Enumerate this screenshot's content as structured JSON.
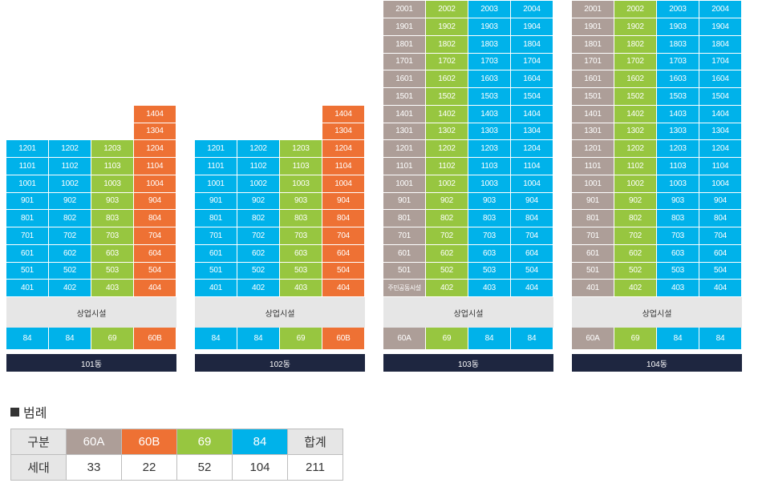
{
  "colors": {
    "60A": "#ad9e98",
    "60B": "#ee7134",
    "69": "#97c640",
    "84": "#00b2ea",
    "commercial": "#e6e6e6",
    "namebar": "#1e2640"
  },
  "buildings": [
    {
      "name": "101동",
      "commercial": "상업시설",
      "types": [
        "84",
        "84",
        "69",
        "60B"
      ],
      "floors": [
        [
          "",
          "",
          "",
          "1404"
        ],
        [
          "",
          "",
          "",
          "1304"
        ],
        [
          "1201",
          "1202",
          "1203",
          "1204"
        ],
        [
          "1101",
          "1102",
          "1103",
          "1104"
        ],
        [
          "1001",
          "1002",
          "1003",
          "1004"
        ],
        [
          "901",
          "902",
          "903",
          "904"
        ],
        [
          "801",
          "802",
          "803",
          "804"
        ],
        [
          "701",
          "702",
          "703",
          "704"
        ],
        [
          "601",
          "602",
          "603",
          "604"
        ],
        [
          "501",
          "502",
          "503",
          "504"
        ],
        [
          "401",
          "402",
          "403",
          "404"
        ]
      ]
    },
    {
      "name": "102동",
      "commercial": "상업시설",
      "types": [
        "84",
        "84",
        "69",
        "60B"
      ],
      "floors": [
        [
          "",
          "",
          "",
          "1404"
        ],
        [
          "",
          "",
          "",
          "1304"
        ],
        [
          "1201",
          "1202",
          "1203",
          "1204"
        ],
        [
          "1101",
          "1102",
          "1103",
          "1104"
        ],
        [
          "1001",
          "1002",
          "1003",
          "1004"
        ],
        [
          "901",
          "902",
          "903",
          "904"
        ],
        [
          "801",
          "802",
          "803",
          "804"
        ],
        [
          "701",
          "702",
          "703",
          "704"
        ],
        [
          "601",
          "602",
          "603",
          "604"
        ],
        [
          "501",
          "502",
          "503",
          "504"
        ],
        [
          "401",
          "402",
          "403",
          "404"
        ]
      ]
    },
    {
      "name": "103동",
      "commercial": "상업시설",
      "types": [
        "60A",
        "69",
        "84",
        "84"
      ],
      "floors": [
        [
          "2001",
          "2002",
          "2003",
          "2004"
        ],
        [
          "1901",
          "1902",
          "1903",
          "1904"
        ],
        [
          "1801",
          "1802",
          "1803",
          "1804"
        ],
        [
          "1701",
          "1702",
          "1703",
          "1704"
        ],
        [
          "1601",
          "1602",
          "1603",
          "1604"
        ],
        [
          "1501",
          "1502",
          "1503",
          "1504"
        ],
        [
          "1401",
          "1402",
          "1403",
          "1404"
        ],
        [
          "1301",
          "1302",
          "1303",
          "1304"
        ],
        [
          "1201",
          "1202",
          "1203",
          "1204"
        ],
        [
          "1101",
          "1102",
          "1103",
          "1104"
        ],
        [
          "1001",
          "1002",
          "1003",
          "1004"
        ],
        [
          "901",
          "902",
          "903",
          "904"
        ],
        [
          "801",
          "802",
          "803",
          "804"
        ],
        [
          "701",
          "702",
          "703",
          "704"
        ],
        [
          "601",
          "602",
          "603",
          "604"
        ],
        [
          "501",
          "502",
          "503",
          "504"
        ],
        [
          "주민공동시설",
          "402",
          "403",
          "404"
        ]
      ]
    },
    {
      "name": "104동",
      "commercial": "상업시설",
      "types": [
        "60A",
        "69",
        "84",
        "84"
      ],
      "floors": [
        [
          "2001",
          "2002",
          "2003",
          "2004"
        ],
        [
          "1901",
          "1902",
          "1903",
          "1904"
        ],
        [
          "1801",
          "1802",
          "1803",
          "1804"
        ],
        [
          "1701",
          "1702",
          "1703",
          "1704"
        ],
        [
          "1601",
          "1602",
          "1603",
          "1604"
        ],
        [
          "1501",
          "1502",
          "1503",
          "1504"
        ],
        [
          "1401",
          "1402",
          "1403",
          "1404"
        ],
        [
          "1301",
          "1302",
          "1303",
          "1304"
        ],
        [
          "1201",
          "1202",
          "1203",
          "1204"
        ],
        [
          "1101",
          "1102",
          "1103",
          "1104"
        ],
        [
          "1001",
          "1002",
          "1003",
          "1004"
        ],
        [
          "901",
          "902",
          "903",
          "904"
        ],
        [
          "801",
          "802",
          "803",
          "804"
        ],
        [
          "701",
          "702",
          "703",
          "704"
        ],
        [
          "601",
          "602",
          "603",
          "604"
        ],
        [
          "501",
          "502",
          "503",
          "504"
        ],
        [
          "401",
          "402",
          "403",
          "404"
        ]
      ]
    }
  ],
  "legend": {
    "title": "범례",
    "header_label": "구분",
    "count_label": "세대",
    "total_label": "합계",
    "types": [
      {
        "name": "60A",
        "count": "33"
      },
      {
        "name": "60B",
        "count": "22"
      },
      {
        "name": "69",
        "count": "52"
      },
      {
        "name": "84",
        "count": "104"
      }
    ],
    "total": "211"
  }
}
